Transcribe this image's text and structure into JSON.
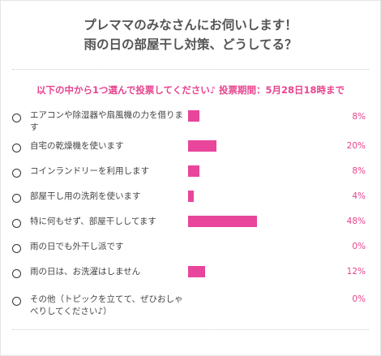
{
  "poll": {
    "title_line1": "プレママのみなさんにお伺いします！",
    "title_line2": "雨の日の部屋干し対策、どうしてる？",
    "question": "以下の中から1つ選んで投票してください♪ 投票期間：5月28日18時まで",
    "accent_color": "#e8459b",
    "options": [
      {
        "label": "エアコンや除湿器や扇風機の力を借ります",
        "percent": 8,
        "percent_label": "8%"
      },
      {
        "label": "自宅の乾燥機を使います",
        "percent": 20,
        "percent_label": "20%"
      },
      {
        "label": "コインランドリーを利用します",
        "percent": 8,
        "percent_label": "8%"
      },
      {
        "label": "部屋干し用の洗剤を使います",
        "percent": 4,
        "percent_label": "4%"
      },
      {
        "label": "特に何もせず、部屋干ししてます",
        "percent": 48,
        "percent_label": "48%"
      },
      {
        "label": "雨の日でも外干し派です",
        "percent": 0,
        "percent_label": "0%"
      },
      {
        "label": "雨の日は、お洗濯はしません",
        "percent": 12,
        "percent_label": "12%"
      },
      {
        "label": "その他（トピックを立てて、ぜひおしゃべりしてください♪）",
        "percent": 0,
        "percent_label": "0%"
      }
    ]
  }
}
